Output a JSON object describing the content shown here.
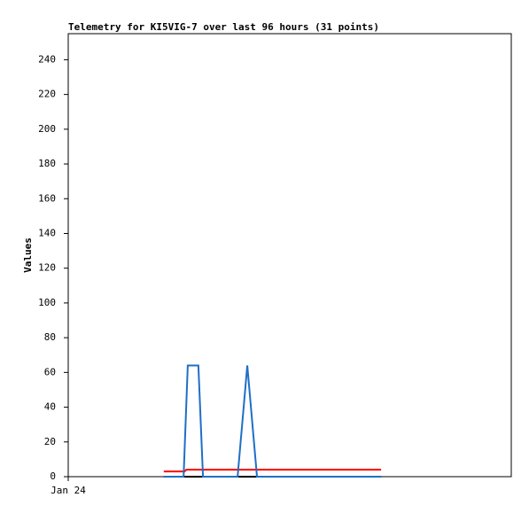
{
  "chart_data": {
    "type": "line",
    "title": "Telemetry for KI5VIG-7 over last 96 hours (31 points)",
    "y_label": "Values",
    "xlim": [
      0,
      96
    ],
    "xticks": [
      {
        "value": 0,
        "label": "Jan 24"
      }
    ],
    "ylim": [
      0,
      255
    ],
    "yticks": [
      0,
      20,
      40,
      60,
      80,
      100,
      120,
      140,
      160,
      180,
      200,
      220,
      240
    ],
    "grid": false,
    "series": [
      {
        "color": "#000000",
        "x": [
          20.7,
          67.8
        ],
        "values": [
          0,
          0
        ]
      },
      {
        "color": "#ff0000",
        "x": [
          20.7,
          25.2,
          25.6,
          67.8
        ],
        "values": [
          3,
          3,
          4,
          4
        ]
      },
      {
        "color": "#1f6fc6",
        "x": [
          20.7,
          25,
          25.9,
          28.2,
          29.2,
          36.7,
          38.8,
          40.9,
          67.8
        ],
        "values": [
          0,
          0,
          64,
          64,
          0,
          0,
          64,
          0,
          0
        ]
      }
    ]
  }
}
